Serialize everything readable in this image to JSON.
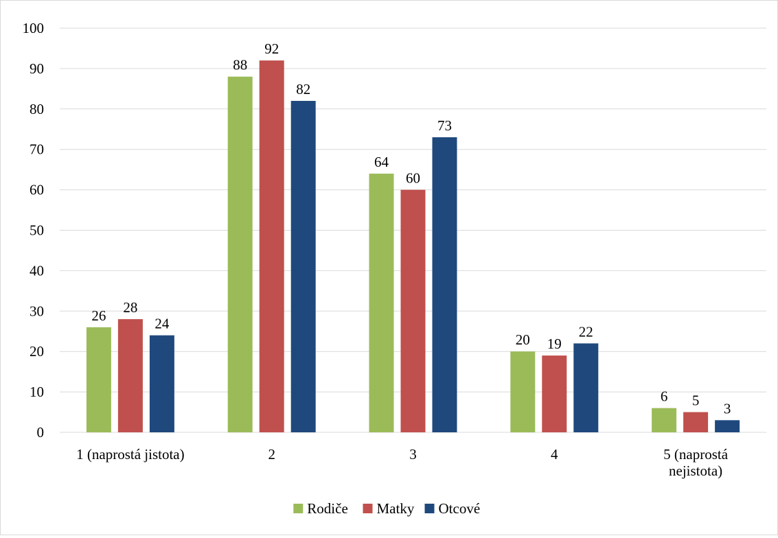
{
  "chart_data": {
    "type": "bar",
    "title": "",
    "xlabel": "",
    "ylabel": "",
    "categories": [
      [
        "1 (naprostá jistota)"
      ],
      [
        "2"
      ],
      [
        "3"
      ],
      [
        "4"
      ],
      [
        "5 (naprostá",
        "nejistota)"
      ]
    ],
    "series": [
      {
        "name": "Rodiče",
        "color": "#9bbb59",
        "values": [
          26,
          88,
          64,
          20,
          6
        ]
      },
      {
        "name": "Matky",
        "color": "#c0504d",
        "values": [
          28,
          92,
          60,
          19,
          5
        ]
      },
      {
        "name": "Otcové",
        "color": "#1f497d",
        "values": [
          24,
          82,
          73,
          22,
          3
        ]
      }
    ],
    "ylim": [
      0,
      100
    ],
    "yticks": [
      0,
      10,
      20,
      30,
      40,
      50,
      60,
      70,
      80,
      90,
      100
    ],
    "grid": true,
    "data_labels": true,
    "legend_position": "bottom"
  }
}
